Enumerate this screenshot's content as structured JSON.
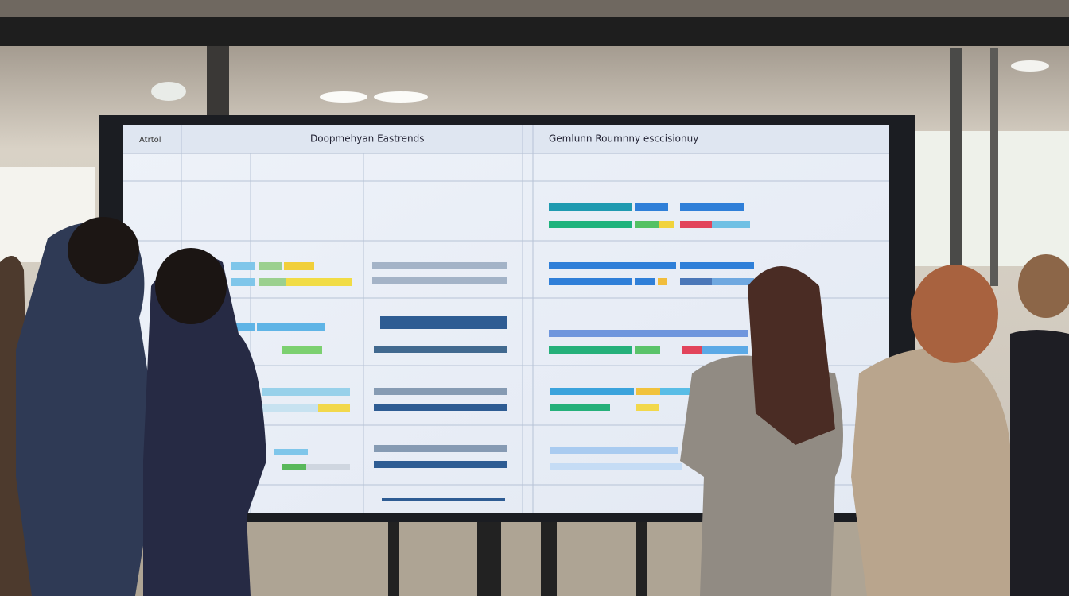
{
  "screen": {
    "header": {
      "left_label": "Atrtol",
      "left_title": "Doopmehyan Eastrends",
      "right_title": "Gemlunn Roumnny esccisionuy"
    }
  }
}
